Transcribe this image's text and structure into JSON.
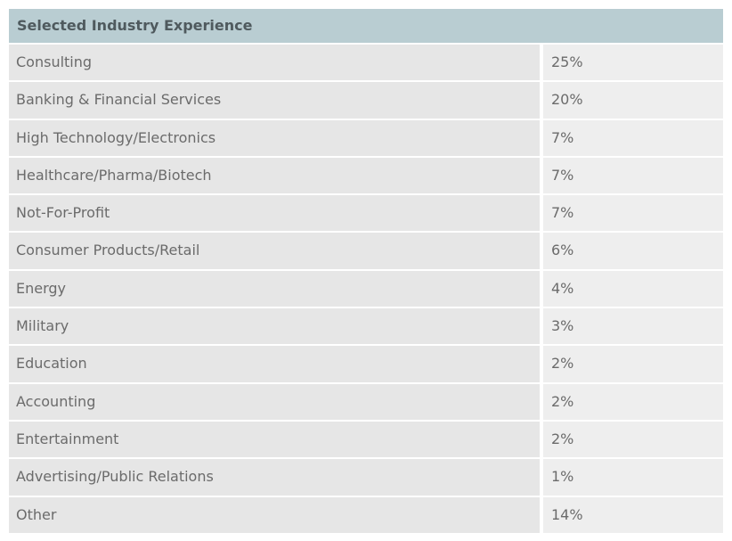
{
  "table": {
    "title": "Selected Industry Experience",
    "rows": [
      {
        "industry": "Consulting",
        "percent": "25%"
      },
      {
        "industry": "Banking & Financial Services",
        "percent": "20%"
      },
      {
        "industry": "High Technology/Electronics",
        "percent": "7%"
      },
      {
        "industry": "Healthcare/Pharma/Biotech",
        "percent": "7%"
      },
      {
        "industry": "Not-For-Profit",
        "percent": "7%"
      },
      {
        "industry": "Consumer Products/Retail",
        "percent": "6%"
      },
      {
        "industry": "Energy",
        "percent": "4%"
      },
      {
        "industry": "Military",
        "percent": "3%"
      },
      {
        "industry": "Education",
        "percent": "2%"
      },
      {
        "industry": "Accounting",
        "percent": "2%"
      },
      {
        "industry": "Entertainment",
        "percent": "2%"
      },
      {
        "industry": "Advertising/Public Relations",
        "percent": "1%"
      },
      {
        "industry": "Other",
        "percent": "14%"
      }
    ]
  }
}
